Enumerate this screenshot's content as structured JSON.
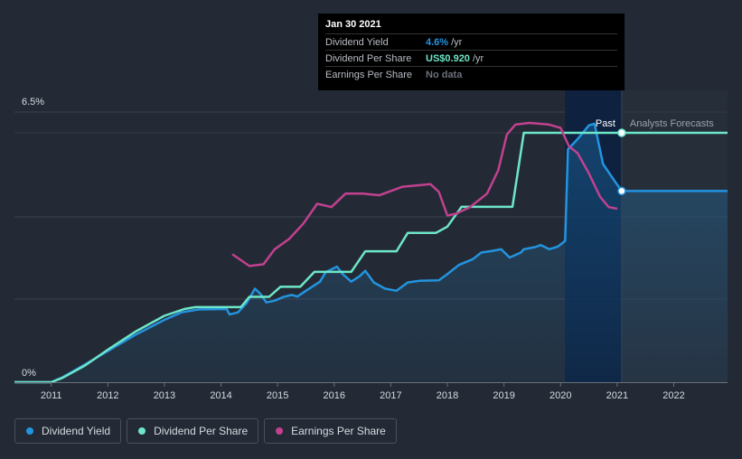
{
  "tooltip": {
    "date": "Jan 30 2021",
    "rows": [
      {
        "name": "Dividend Yield",
        "value": "4.6%",
        "unit": "/yr",
        "color": "#2394df"
      },
      {
        "name": "Dividend Per Share",
        "value": "US$0.920",
        "unit": "/yr",
        "color": "#6ee6c8"
      },
      {
        "name": "Earnings Per Share",
        "value": "No data",
        "unit": "",
        "color": "#6b717a"
      }
    ]
  },
  "regions": {
    "past": "Past",
    "forecast": "Analysts Forecasts"
  },
  "legend": [
    {
      "label": "Dividend Yield",
      "color": "#2394df"
    },
    {
      "label": "Dividend Per Share",
      "color": "#6ee6c8"
    },
    {
      "label": "Earnings Per Share",
      "color": "#c2418f"
    }
  ],
  "chart_data": {
    "type": "line",
    "x_ticks": [
      "2011",
      "2012",
      "2013",
      "2014",
      "2015",
      "2016",
      "2017",
      "2018",
      "2019",
      "2020",
      "2021",
      "2022"
    ],
    "y_axis_left": {
      "ticks": [
        "6.5%",
        "0%"
      ],
      "range": [
        0,
        6.5
      ],
      "unit": "%"
    },
    "x_range": [
      2010.35,
      2022.95
    ],
    "past_end": 2021.08,
    "highlight_start": 2020.08,
    "series": [
      {
        "name": "Dividend Yield",
        "color": "#2394df",
        "unit": "%",
        "area": true,
        "points": [
          [
            2010.35,
            0
          ],
          [
            2011.0,
            0
          ],
          [
            2011.2,
            0.12
          ],
          [
            2011.5,
            0.35
          ],
          [
            2012.0,
            0.75
          ],
          [
            2012.5,
            1.15
          ],
          [
            2013.0,
            1.5
          ],
          [
            2013.3,
            1.68
          ],
          [
            2013.6,
            1.75
          ],
          [
            2014.1,
            1.76
          ],
          [
            2014.15,
            1.63
          ],
          [
            2014.3,
            1.68
          ],
          [
            2014.45,
            1.9
          ],
          [
            2014.6,
            2.25
          ],
          [
            2014.7,
            2.12
          ],
          [
            2014.8,
            1.92
          ],
          [
            2014.95,
            1.96
          ],
          [
            2015.1,
            2.05
          ],
          [
            2015.25,
            2.1
          ],
          [
            2015.35,
            2.06
          ],
          [
            2015.5,
            2.2
          ],
          [
            2015.75,
            2.42
          ],
          [
            2015.85,
            2.65
          ],
          [
            2016.05,
            2.78
          ],
          [
            2016.15,
            2.6
          ],
          [
            2016.3,
            2.42
          ],
          [
            2016.45,
            2.55
          ],
          [
            2016.55,
            2.68
          ],
          [
            2016.7,
            2.4
          ],
          [
            2016.9,
            2.25
          ],
          [
            2017.1,
            2.2
          ],
          [
            2017.3,
            2.4
          ],
          [
            2017.5,
            2.44
          ],
          [
            2017.85,
            2.45
          ],
          [
            2018.0,
            2.6
          ],
          [
            2018.2,
            2.82
          ],
          [
            2018.45,
            2.96
          ],
          [
            2018.6,
            3.12
          ],
          [
            2018.8,
            3.16
          ],
          [
            2018.95,
            3.2
          ],
          [
            2019.1,
            3.0
          ],
          [
            2019.3,
            3.12
          ],
          [
            2019.35,
            3.2
          ],
          [
            2019.55,
            3.25
          ],
          [
            2019.65,
            3.3
          ],
          [
            2019.8,
            3.2
          ],
          [
            2019.95,
            3.26
          ],
          [
            2020.08,
            3.4
          ],
          [
            2020.13,
            5.6
          ],
          [
            2020.3,
            5.85
          ],
          [
            2020.5,
            6.18
          ],
          [
            2020.6,
            6.22
          ],
          [
            2020.75,
            5.25
          ],
          [
            2020.95,
            4.85
          ],
          [
            2021.08,
            4.6
          ],
          [
            2022.95,
            4.6
          ]
        ]
      },
      {
        "name": "Dividend Per Share",
        "color": "#6ee6c8",
        "unit": "US$/yr",
        "points": [
          [
            2010.35,
            0
          ],
          [
            2011.0,
            0
          ],
          [
            2011.2,
            0.016
          ],
          [
            2011.6,
            0.062
          ],
          [
            2012.0,
            0.12
          ],
          [
            2012.5,
            0.188
          ],
          [
            2013.0,
            0.245
          ],
          [
            2013.35,
            0.27
          ],
          [
            2013.55,
            0.277
          ],
          [
            2014.35,
            0.277
          ],
          [
            2014.5,
            0.315
          ],
          [
            2014.85,
            0.315
          ],
          [
            2015.05,
            0.352
          ],
          [
            2015.4,
            0.352
          ],
          [
            2015.65,
            0.407
          ],
          [
            2016.3,
            0.407
          ],
          [
            2016.55,
            0.483
          ],
          [
            2017.1,
            0.483
          ],
          [
            2017.3,
            0.551
          ],
          [
            2017.8,
            0.551
          ],
          [
            2018.0,
            0.574
          ],
          [
            2018.25,
            0.647
          ],
          [
            2018.55,
            0.647
          ],
          [
            2019.15,
            0.647
          ],
          [
            2019.35,
            0.92
          ],
          [
            2022.95,
            0.92
          ]
        ]
      },
      {
        "name": "Earnings Per Share",
        "color": "#c2418f",
        "unit": "US$",
        "points": [
          [
            2014.2,
            0.38
          ],
          [
            2014.5,
            0.345
          ],
          [
            2014.75,
            0.35
          ],
          [
            2014.95,
            0.395
          ],
          [
            2015.2,
            0.425
          ],
          [
            2015.45,
            0.47
          ],
          [
            2015.7,
            0.53
          ],
          [
            2015.95,
            0.52
          ],
          [
            2016.2,
            0.56
          ],
          [
            2016.5,
            0.56
          ],
          [
            2016.8,
            0.555
          ],
          [
            2017.2,
            0.58
          ],
          [
            2017.5,
            0.585
          ],
          [
            2017.7,
            0.588
          ],
          [
            2017.85,
            0.565
          ],
          [
            2018.0,
            0.495
          ],
          [
            2018.15,
            0.5
          ],
          [
            2018.4,
            0.52
          ],
          [
            2018.7,
            0.56
          ],
          [
            2018.9,
            0.63
          ],
          [
            2019.05,
            0.735
          ],
          [
            2019.2,
            0.765
          ],
          [
            2019.45,
            0.77
          ],
          [
            2019.8,
            0.765
          ],
          [
            2020.0,
            0.755
          ],
          [
            2020.15,
            0.7
          ],
          [
            2020.3,
            0.68
          ],
          [
            2020.5,
            0.62
          ],
          [
            2020.7,
            0.55
          ],
          [
            2020.85,
            0.52
          ],
          [
            2021.0,
            0.515
          ]
        ]
      }
    ]
  }
}
